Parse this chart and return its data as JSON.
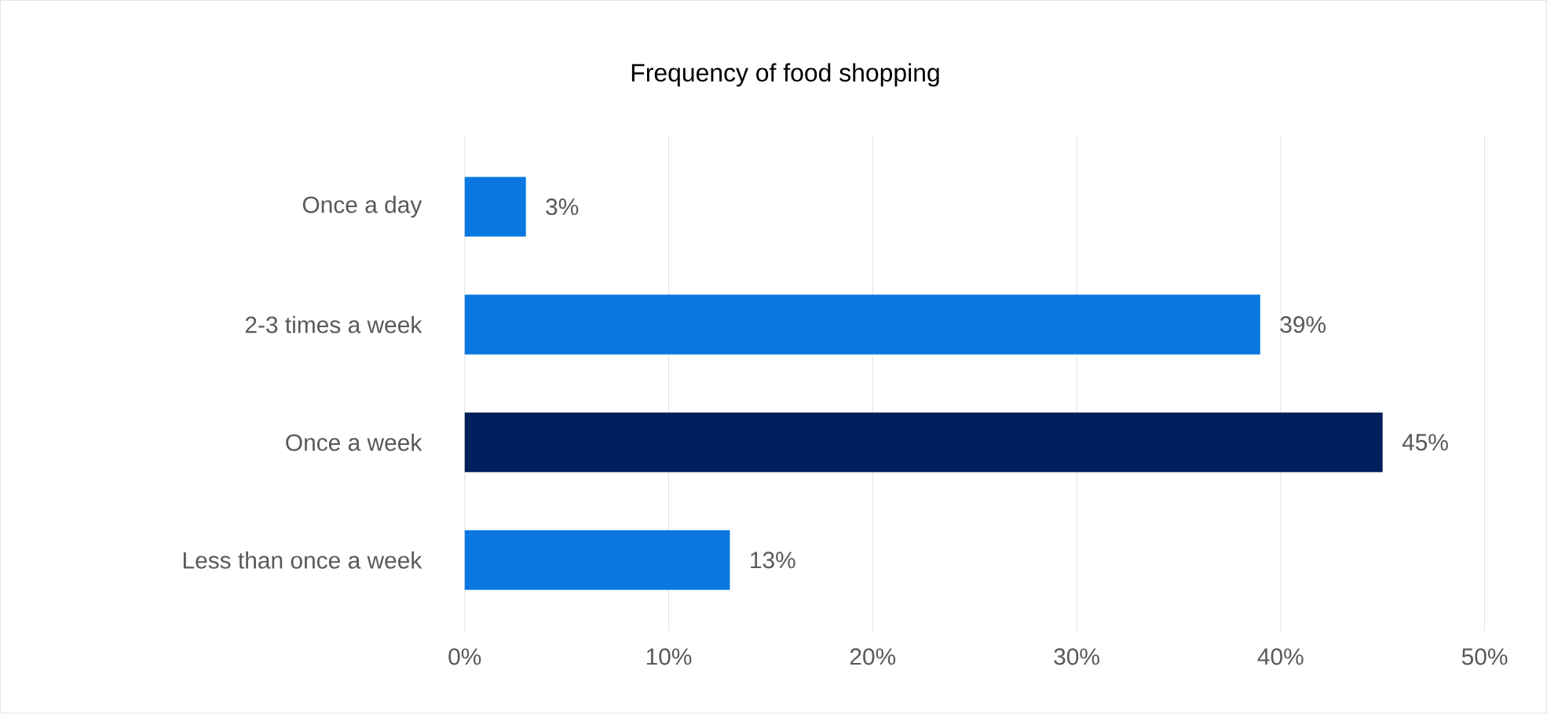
{
  "chart_data": {
    "type": "bar",
    "orientation": "horizontal",
    "title": "Frequency of food shopping",
    "categories": [
      "Once a day",
      "2-3 times a week",
      "Once a week",
      "Less than once a week"
    ],
    "values": [
      3,
      39,
      45,
      13
    ],
    "value_labels": [
      "3%",
      "39%",
      "45%",
      "13%"
    ],
    "colors": [
      "#0a78e0",
      "#0a78e0",
      "#001f5c",
      "#0a78e0"
    ],
    "xlim": [
      0,
      50
    ],
    "xticks": [
      {
        "value": 0,
        "label": "0%"
      },
      {
        "value": 10,
        "label": "10%"
      },
      {
        "value": 20,
        "label": "20%"
      },
      {
        "value": 30,
        "label": "30%"
      },
      {
        "value": 40,
        "label": "40%"
      },
      {
        "value": 50,
        "label": "50%"
      }
    ],
    "grid": "x"
  }
}
